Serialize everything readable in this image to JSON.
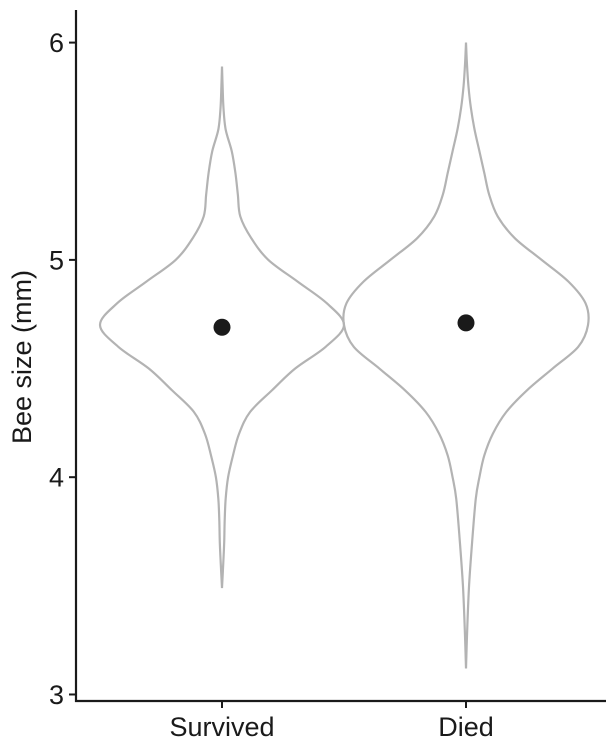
{
  "chart_data": {
    "type": "violin",
    "title": "",
    "xlabel": "",
    "ylabel": "Bee size (mm)",
    "ylim": [
      2.97,
      6.15
    ],
    "yticks": [
      "3",
      "4",
      "5",
      "6"
    ],
    "categories": [
      "Survived",
      "Died"
    ],
    "means": [
      4.69,
      4.71
    ],
    "colors": {
      "violin_outline": "#b3b3b3",
      "point": "#1a1a1a",
      "axis": "#1a1a1a"
    },
    "grid": false,
    "legend": "none",
    "violins": [
      {
        "category": "Survived",
        "min": 3.49,
        "max": 5.89,
        "profile": [
          [
            3.49,
            0.0
          ],
          [
            3.6,
            0.01
          ],
          [
            3.7,
            0.018
          ],
          [
            3.8,
            0.022
          ],
          [
            3.9,
            0.03
          ],
          [
            4.0,
            0.05
          ],
          [
            4.1,
            0.09
          ],
          [
            4.2,
            0.14
          ],
          [
            4.3,
            0.23
          ],
          [
            4.4,
            0.41
          ],
          [
            4.5,
            0.6
          ],
          [
            4.6,
            0.85
          ],
          [
            4.7,
            1.0
          ],
          [
            4.8,
            0.86
          ],
          [
            4.9,
            0.62
          ],
          [
            5.0,
            0.38
          ],
          [
            5.1,
            0.24
          ],
          [
            5.2,
            0.15
          ],
          [
            5.3,
            0.13
          ],
          [
            5.4,
            0.11
          ],
          [
            5.5,
            0.08
          ],
          [
            5.6,
            0.03
          ],
          [
            5.7,
            0.012
          ],
          [
            5.8,
            0.005
          ],
          [
            5.89,
            0.0
          ]
        ]
      },
      {
        "category": "Died",
        "min": 3.12,
        "max": 6.0,
        "profile": [
          [
            3.12,
            0.0
          ],
          [
            3.3,
            0.01
          ],
          [
            3.5,
            0.025
          ],
          [
            3.7,
            0.05
          ],
          [
            3.9,
            0.08
          ],
          [
            4.0,
            0.11
          ],
          [
            4.1,
            0.15
          ],
          [
            4.2,
            0.22
          ],
          [
            4.3,
            0.33
          ],
          [
            4.4,
            0.5
          ],
          [
            4.5,
            0.71
          ],
          [
            4.6,
            0.92
          ],
          [
            4.7,
            1.0
          ],
          [
            4.8,
            0.98
          ],
          [
            4.9,
            0.84
          ],
          [
            5.0,
            0.62
          ],
          [
            5.1,
            0.4
          ],
          [
            5.2,
            0.26
          ],
          [
            5.3,
            0.19
          ],
          [
            5.4,
            0.15
          ],
          [
            5.5,
            0.11
          ],
          [
            5.6,
            0.07
          ],
          [
            5.7,
            0.04
          ],
          [
            5.8,
            0.02
          ],
          [
            5.9,
            0.008
          ],
          [
            6.0,
            0.0
          ]
        ]
      }
    ]
  }
}
